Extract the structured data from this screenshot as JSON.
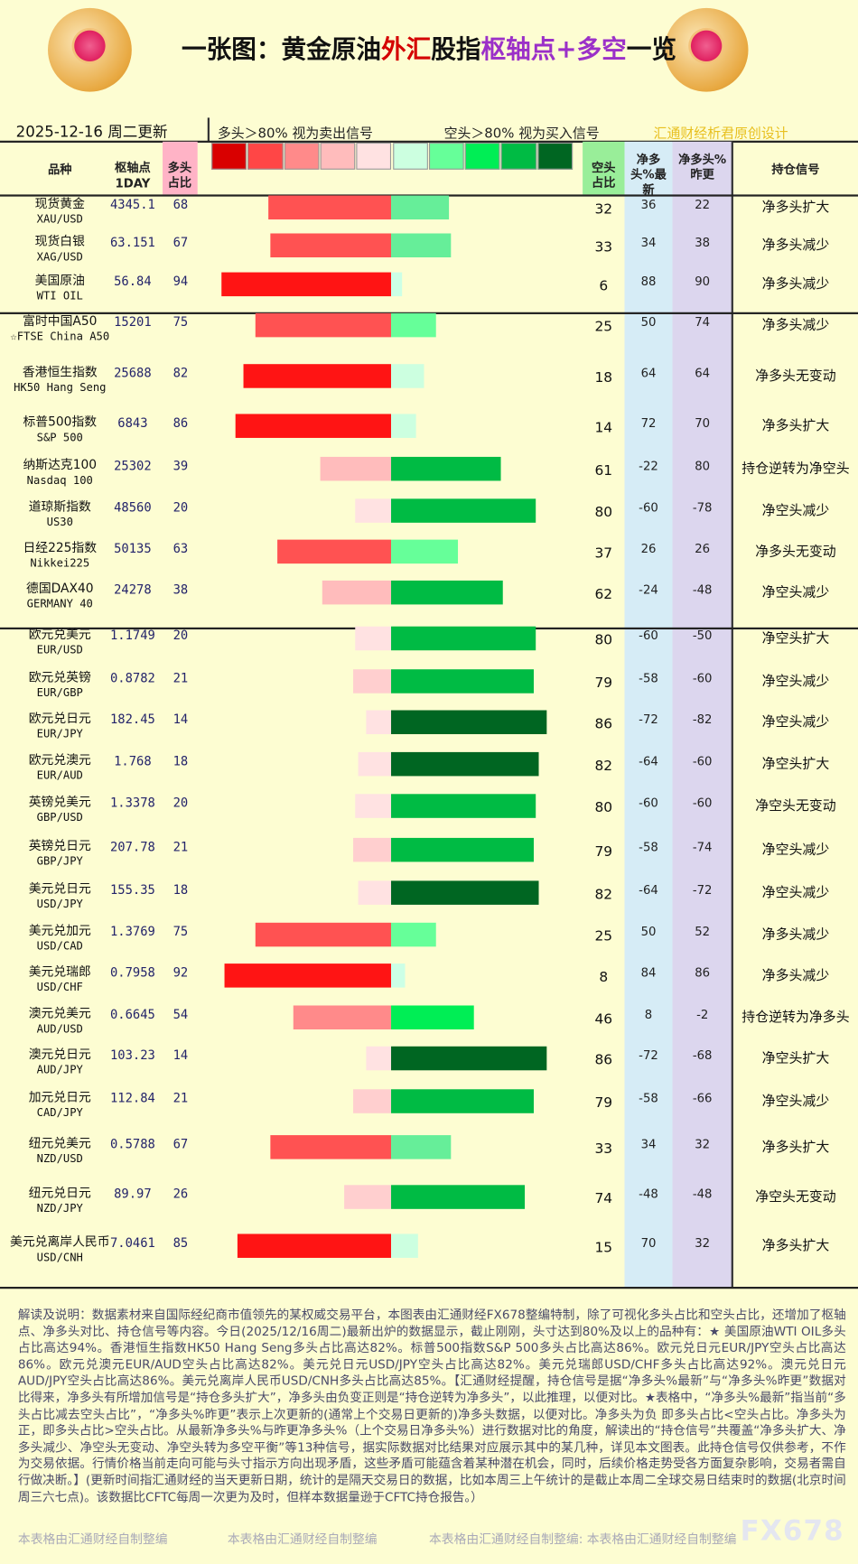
{
  "header": {
    "title": [
      {
        "text": "一张图：黄金原油",
        "color": "#111111"
      },
      {
        "text": "外汇",
        "color": "#d40000"
      },
      {
        "text": "股指",
        "color": "#111111"
      },
      {
        "text": "枢轴点+多空",
        "color": "#9b30c8"
      },
      {
        "text": "一览",
        "color": "#111111"
      }
    ],
    "date": "2025-12-16 周二更新",
    "legend_sell": "多头＞80% 视为卖出信号",
    "legend_buy": "空头＞80% 视为买入信号",
    "credit": "汇通财经析君原创设计",
    "scale_colors": [
      "#d90000",
      "#ff4646",
      "#ff8a8a",
      "#ffbcbc",
      "#ffe2e2",
      "#ccffe0",
      "#66ff99",
      "#00ee55",
      "#00bb44",
      "#006622"
    ]
  },
  "columns": {
    "name": "品种",
    "pivot": "枢轴点",
    "pivot_period": "1DAY",
    "long": "多头占比",
    "short": "空头占比",
    "net_latest": "净多头%最新",
    "net_prev": "净多头%昨更",
    "signal": "持仓信号"
  },
  "groups": [
    {
      "rows": [
        {
          "name": "现货黄金",
          "code": "XAU/USD",
          "pivot": 4345.1,
          "long": 68,
          "short": 32,
          "net_latest": 36,
          "net_prev": 22,
          "signal": "净多头扩大",
          "long_color": "#ff5252",
          "short_color": "#66ee99"
        },
        {
          "name": "现货白银",
          "code": "XAG/USD",
          "pivot": 63.151,
          "long": 67,
          "short": 33,
          "net_latest": 34,
          "net_prev": 38,
          "signal": "净多头减少",
          "long_color": "#ff5252",
          "short_color": "#66ee99"
        },
        {
          "name": "美国原油",
          "code": "WTI OIL",
          "pivot": 56.84,
          "long": 94,
          "short": 6,
          "net_latest": 88,
          "net_prev": 90,
          "signal": "净多头减少",
          "long_color": "#ff1414",
          "short_color": "#ccffe6"
        }
      ]
    },
    {
      "rows": [
        {
          "name": "富时中国A50",
          "code": "☆FTSE China A50",
          "pivot": 15201,
          "long": 75,
          "short": 25,
          "net_latest": 50,
          "net_prev": 74,
          "signal": "净多头减少",
          "long_color": "#ff5252",
          "short_color": "#66ff99"
        },
        {
          "name": "香港恒生指数",
          "code": "HK50 Hang Seng",
          "pivot": 25688,
          "long": 82,
          "short": 18,
          "net_latest": 64,
          "net_prev": 64,
          "signal": "净多头无变动",
          "long_color": "#ff1414",
          "short_color": "#ccffe0"
        },
        {
          "name": "标普500指数",
          "code": "S&P 500",
          "pivot": 6843,
          "long": 86,
          "short": 14,
          "net_latest": 72,
          "net_prev": 70,
          "signal": "净多头扩大",
          "long_color": "#ff1414",
          "short_color": "#ccffe0"
        },
        {
          "name": "纳斯达克100",
          "code": "Nasdaq 100",
          "pivot": 25302,
          "long": 39,
          "short": 61,
          "net_latest": -22,
          "net_prev": 80,
          "signal": "持仓逆转为净空头",
          "long_color": "#ffbcbc",
          "short_color": "#00bb44"
        },
        {
          "name": "道琼斯指数",
          "code": "US30",
          "pivot": 48560,
          "long": 20,
          "short": 80,
          "net_latest": -60,
          "net_prev": -78,
          "signal": "净空头减少",
          "long_color": "#ffe2e2",
          "short_color": "#00bb44"
        },
        {
          "name": "日经225指数",
          "code": "Nikkei225",
          "pivot": 50135,
          "long": 63,
          "short": 37,
          "net_latest": 26,
          "net_prev": 26,
          "signal": "净多头无变动",
          "long_color": "#ff5252",
          "short_color": "#66ff99"
        },
        {
          "name": "德国DAX40",
          "code": "GERMANY 40",
          "pivot": 24278,
          "long": 38,
          "short": 62,
          "net_latest": -24,
          "net_prev": -48,
          "signal": "净空头减少",
          "long_color": "#ffbcbc",
          "short_color": "#00bb44"
        }
      ]
    },
    {
      "rows": [
        {
          "name": "欧元兑美元",
          "code": "EUR/USD",
          "pivot": 1.1749,
          "long": 20,
          "short": 80,
          "net_latest": -60,
          "net_prev": -50,
          "signal": "净空头扩大",
          "long_color": "#ffe2e2",
          "short_color": "#00bb44"
        },
        {
          "name": "欧元兑英镑",
          "code": "EUR/GBP",
          "pivot": 0.8782,
          "long": 21,
          "short": 79,
          "net_latest": -58,
          "net_prev": -60,
          "signal": "净空头减少",
          "long_color": "#ffcfcf",
          "short_color": "#00bb44"
        },
        {
          "name": "欧元兑日元",
          "code": "EUR/JPY",
          "pivot": 182.45,
          "long": 14,
          "short": 86,
          "net_latest": -72,
          "net_prev": -82,
          "signal": "净空头减少",
          "long_color": "#ffe2e2",
          "short_color": "#006622"
        },
        {
          "name": "欧元兑澳元",
          "code": "EUR/AUD",
          "pivot": 1.768,
          "long": 18,
          "short": 82,
          "net_latest": -64,
          "net_prev": -60,
          "signal": "净空头扩大",
          "long_color": "#ffe2e2",
          "short_color": "#006622"
        },
        {
          "name": "英镑兑美元",
          "code": "GBP/USD",
          "pivot": 1.3378,
          "long": 20,
          "short": 80,
          "net_latest": -60,
          "net_prev": -60,
          "signal": "净空头无变动",
          "long_color": "#ffe2e2",
          "short_color": "#00bb44"
        },
        {
          "name": "英镑兑日元",
          "code": "GBP/JPY",
          "pivot": 207.78,
          "long": 21,
          "short": 79,
          "net_latest": -58,
          "net_prev": -74,
          "signal": "净空头减少",
          "long_color": "#ffcfcf",
          "short_color": "#00bb44"
        },
        {
          "name": "美元兑日元",
          "code": "USD/JPY",
          "pivot": 155.35,
          "long": 18,
          "short": 82,
          "net_latest": -64,
          "net_prev": -72,
          "signal": "净空头减少",
          "long_color": "#ffe2e2",
          "short_color": "#006622"
        },
        {
          "name": "美元兑加元",
          "code": "USD/CAD",
          "pivot": 1.3769,
          "long": 75,
          "short": 25,
          "net_latest": 50,
          "net_prev": 52,
          "signal": "净多头减少",
          "long_color": "#ff5252",
          "short_color": "#66ff99"
        },
        {
          "name": "美元兑瑞郎",
          "code": "USD/CHF",
          "pivot": 0.7958,
          "long": 92,
          "short": 8,
          "net_latest": 84,
          "net_prev": 86,
          "signal": "净多头减少",
          "long_color": "#ff1414",
          "short_color": "#ccffe6"
        },
        {
          "name": "澳元兑美元",
          "code": "AUD/USD",
          "pivot": 0.6645,
          "long": 54,
          "short": 46,
          "net_latest": 8,
          "net_prev": -2,
          "signal": "持仓逆转为净多头",
          "long_color": "#ff8a8a",
          "short_color": "#00ee55"
        },
        {
          "name": "澳元兑日元",
          "code": "AUD/JPY",
          "pivot": 103.23,
          "long": 14,
          "short": 86,
          "net_latest": -72,
          "net_prev": -68,
          "signal": "净空头扩大",
          "long_color": "#ffe2e2",
          "short_color": "#006622"
        },
        {
          "name": "加元兑日元",
          "code": "CAD/JPY",
          "pivot": 112.84,
          "long": 21,
          "short": 79,
          "net_latest": -58,
          "net_prev": -66,
          "signal": "净空头减少",
          "long_color": "#ffcfcf",
          "short_color": "#00bb44"
        },
        {
          "name": "纽元兑美元",
          "code": "NZD/USD",
          "pivot": 0.5788,
          "long": 67,
          "short": 33,
          "net_latest": 34,
          "net_prev": 32,
          "signal": "净多头扩大",
          "long_color": "#ff5252",
          "short_color": "#66ee99"
        },
        {
          "name": "纽元兑日元",
          "code": "NZD/JPY",
          "pivot": 89.97,
          "long": 26,
          "short": 74,
          "net_latest": -48,
          "net_prev": -48,
          "signal": "净空头无变动",
          "long_color": "#ffcfcf",
          "short_color": "#00bb44"
        },
        {
          "name": "美元兑离岸人民币",
          "code": "USD/CNH",
          "pivot": 7.0461,
          "long": 85,
          "short": 15,
          "net_latest": 70,
          "net_prev": 32,
          "signal": "净多头扩大",
          "long_color": "#ff1414",
          "short_color": "#ccffe0"
        }
      ]
    }
  ],
  "footer": {
    "text": "解读及说明：数据素材来自国际经纪商市值领先的某权威交易平台，本图表由汇通财经FX678整编特制，除了可视化多头占比和空头占比，还增加了枢轴点、净多头对比、持仓信号等内容。今日(2025/12/16周二)最新出炉的数据显示，截止刚刚，头寸达到80%及以上的品种有：★ 美国原油WTI OIL多头占比高达94%。香港恒生指数HK50 Hang Seng多头占比高达82%。标普500指数S&P 500多头占比高达86%。欧元兑日元EUR/JPY空头占比高达86%。欧元兑澳元EUR/AUD空头占比高达82%。美元兑日元USD/JPY空头占比高达82%。美元兑瑞郎USD/CHF多头占比高达92%。澳元兑日元AUD/JPY空头占比高达86%。美元兑离岸人民币USD/CNH多头占比高达85%。【汇通财经提醒，持仓信号是据“净多头%最新”与“净多头%昨更”数据对比得来，净多头有所增加信号是“持仓多头扩大”，净多头由负变正则是“持仓逆转为净多头”，以此推理，以便对比。★表格中，“净多头%最新”指当前“多头占比减去空头占比”，“净多头%昨更”表示上次更新的(通常上个交易日更新的)净多头数据，以便对比。净多头为负 即多头占比<空头占比。净多头为正，即多头占比>空头占比。从最新净多头%与昨更净多头%（上个交易日净多头%）进行数据对比的角度，解读出的“持仓信号”共覆盖“净多头扩大、净多头减少、净空头无变动、净空头转为多空平衡”等13种信号，据实际数据对比结果对应展示其中的某几种，详见本文图表。此持仓信号仅供参考，不作为交易依据。行情价格当前走向可能与头寸指示方向出现矛盾，这些矛盾可能蕴含着某种潜在机会，同时，后续价格走势受各方面复杂影响，交易者需自行做决断。】(更新时间指汇通财经的当天更新日期，统计的是隔天交易日的数据，比如本周三上午统计的是截止本周二全球交易日结束时的数据(北京时间周三六七点)。该数据比CFTC每周一次更为及时，但样本数据量逊于CFTC持仓报告。）",
    "watermarks": [
      "本表格由汇通财经自制整编",
      "本表格由汇通财经自制整编",
      "本表格由汇通财经自制整编: 本表格由汇通财经自制整编"
    ],
    "brand": "FX678"
  }
}
